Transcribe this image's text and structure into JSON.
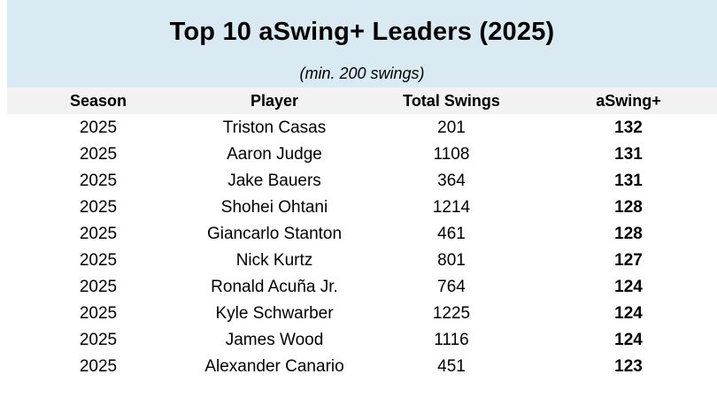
{
  "table": {
    "title": "Top 10 aSwing+ Leaders (2025)",
    "subtitle": "(min. 200 swings)",
    "columns": [
      "Season",
      "Player",
      "Total Swings",
      "aSwing+"
    ],
    "colors": {
      "header_band": "#d9eaf2",
      "header_row": "#f2f2f2"
    }
  },
  "chart_data": {
    "type": "table",
    "title": "Top 10 aSwing+ Leaders (2025)",
    "subtitle": "(min. 200 swings)",
    "columns": [
      "Season",
      "Player",
      "Total Swings",
      "aSwing+"
    ],
    "rows": [
      [
        "2025",
        "Triston Casas",
        "201",
        "132"
      ],
      [
        "2025",
        "Aaron Judge",
        "1108",
        "131"
      ],
      [
        "2025",
        "Jake Bauers",
        "364",
        "131"
      ],
      [
        "2025",
        "Shohei Ohtani",
        "1214",
        "128"
      ],
      [
        "2025",
        "Giancarlo Stanton",
        "461",
        "128"
      ],
      [
        "2025",
        "Nick Kurtz",
        "801",
        "127"
      ],
      [
        "2025",
        "Ronald Acuña Jr.",
        "764",
        "124"
      ],
      [
        "2025",
        "Kyle Schwarber",
        "1225",
        "124"
      ],
      [
        "2025",
        "James Wood",
        "1116",
        "124"
      ],
      [
        "2025",
        "Alexander Canario",
        "451",
        "123"
      ]
    ]
  }
}
